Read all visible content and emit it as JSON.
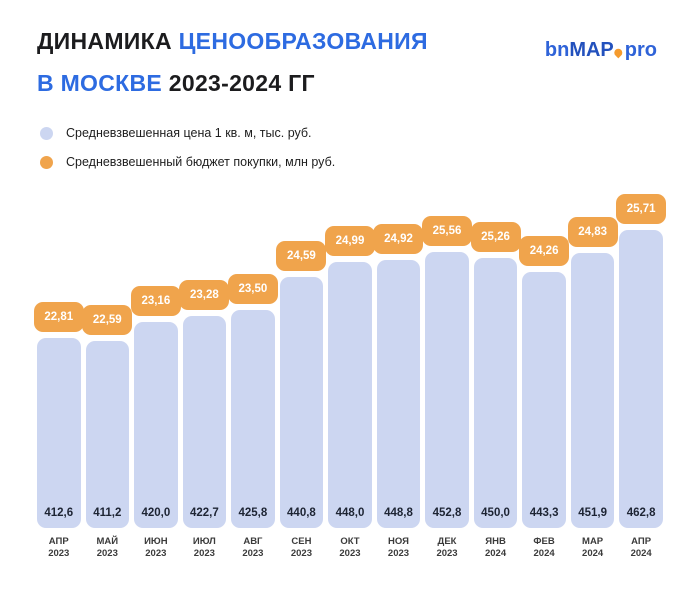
{
  "header": {
    "title_line1_dark": "ДИНАМИКА",
    "title_line1_blue": "ЦЕНООБРАЗОВАНИЯ",
    "title_line2_blue": "В МОСКВЕ",
    "title_line2_dark": "2023-2024 ГГ"
  },
  "logo": {
    "part_bn": "bn",
    "part_map": "MAP",
    "part_pro": "pro",
    "pin_color": "#f59b2e"
  },
  "colors": {
    "accent_blue": "#2d6be1",
    "text_dark": "#1c1c1e",
    "bar_lavender": "#ccd6f1",
    "badge_orange": "#f0a44c"
  },
  "chart_data": {
    "type": "bar",
    "title": "ДИНАМИКА ЦЕНООБРАЗОВАНИЯ В МОСКВЕ 2023-2024 ГГ",
    "legend_position": "top-left",
    "grid": false,
    "categories": [
      {
        "month": "АПР",
        "year": "2023"
      },
      {
        "month": "МАЙ",
        "year": "2023"
      },
      {
        "month": "ИЮН",
        "year": "2023"
      },
      {
        "month": "ИЮЛ",
        "year": "2023"
      },
      {
        "month": "АВГ",
        "year": "2023"
      },
      {
        "month": "СЕН",
        "year": "2023"
      },
      {
        "month": "ОКТ",
        "year": "2023"
      },
      {
        "month": "НОЯ",
        "year": "2023"
      },
      {
        "month": "ДЕК",
        "year": "2023"
      },
      {
        "month": "ЯНВ",
        "year": "2024"
      },
      {
        "month": "ФЕВ",
        "year": "2024"
      },
      {
        "month": "МАР",
        "year": "2024"
      },
      {
        "month": "АПР",
        "year": "2024"
      }
    ],
    "series": [
      {
        "name": "Средневзвешенная цена 1 кв. м, тыс. руб.",
        "unit": "тыс. руб.",
        "color": "#ccd6f1",
        "values": [
          412.6,
          411.2,
          420.0,
          422.7,
          425.8,
          440.8,
          448.0,
          448.8,
          452.8,
          450.0,
          443.3,
          451.9,
          462.8
        ],
        "labels": [
          "412,6",
          "411,2",
          "420,0",
          "422,7",
          "425,8",
          "440,8",
          "448,0",
          "448,8",
          "452,8",
          "450,0",
          "443,3",
          "451,9",
          "462,8"
        ]
      },
      {
        "name": "Средневзвешенный бюджет покупки, млн руб.",
        "unit": "млн руб.",
        "color": "#f0a44c",
        "values": [
          22.81,
          22.59,
          23.16,
          23.28,
          23.5,
          24.59,
          24.99,
          24.92,
          25.56,
          25.26,
          24.26,
          24.83,
          25.71
        ],
        "labels": [
          "22,81",
          "22,59",
          "23,16",
          "23,28",
          "23,50",
          "24,59",
          "24,99",
          "24,92",
          "25,56",
          "25,26",
          "24,26",
          "24,83",
          "25,71"
        ]
      }
    ]
  }
}
